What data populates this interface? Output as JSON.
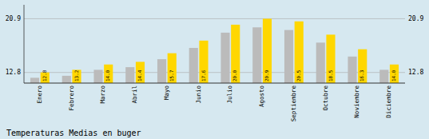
{
  "chart_data": {
    "type": "bar",
    "title": "Temperaturas Medias en buger",
    "categories": [
      "Enero",
      "Febrero",
      "Marzo",
      "Abril",
      "Mayo",
      "Junio",
      "Julio",
      "Agosto",
      "Septiembre",
      "Octubre",
      "Noviembre",
      "Diciembre"
    ],
    "series": [
      {
        "color": "#BBBBBB",
        "values": [
          12.0,
          12.3,
          13.2,
          13.6,
          14.8,
          16.5,
          18.8,
          19.6,
          19.2,
          17.3,
          15.2,
          13.2
        ]
      },
      {
        "color": "#FFD700",
        "values": [
          12.8,
          13.2,
          14.0,
          14.4,
          15.7,
          17.6,
          20.0,
          20.9,
          20.5,
          18.5,
          16.3,
          14.0
        ],
        "value_labels": [
          "12.8",
          "13.2",
          "14.0",
          "14.4",
          "15.7",
          "17.6",
          "20.0",
          "20.9",
          "20.5",
          "18.5",
          "16.3",
          "14.0"
        ],
        "data_labels": true
      }
    ],
    "ylim": [
      11.2,
      23.0
    ],
    "yticks": [
      12.8,
      20.9
    ],
    "grid": true
  }
}
